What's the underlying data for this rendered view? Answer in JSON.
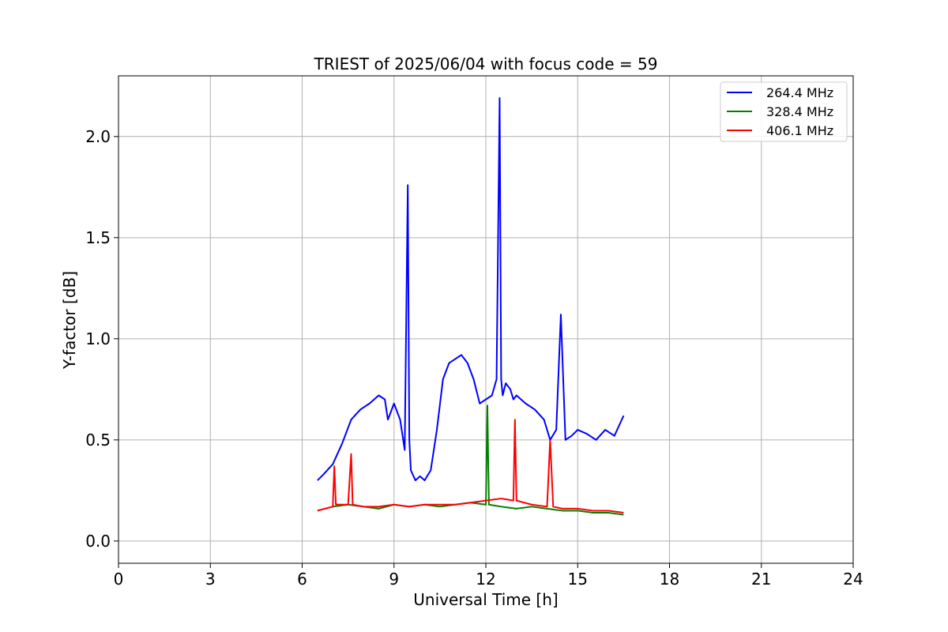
{
  "chart_data": {
    "type": "line",
    "title": "TRIEST of 2025/06/04 with focus code = 59",
    "xlabel": "Universal Time [h]",
    "ylabel": "Y-factor [dB]",
    "xlim": [
      0,
      24
    ],
    "ylim": [
      -0.11,
      2.3
    ],
    "xticks": [
      0,
      3,
      6,
      9,
      12,
      15,
      18,
      21,
      24
    ],
    "yticks": [
      0.0,
      0.5,
      1.0,
      1.5,
      2.0
    ],
    "xtick_labels": [
      "0",
      "3",
      "6",
      "9",
      "12",
      "15",
      "18",
      "21",
      "24"
    ],
    "ytick_labels": [
      "0.0",
      "0.5",
      "1.0",
      "1.5",
      "2.0"
    ],
    "grid": true,
    "legend_position": "top-right",
    "series": [
      {
        "name": "264.4 MHz",
        "color": "#0000ff",
        "x": [
          6.5,
          6.7,
          7.0,
          7.3,
          7.6,
          7.9,
          8.2,
          8.5,
          8.7,
          8.8,
          9.0,
          9.2,
          9.35,
          9.45,
          9.5,
          9.55,
          9.7,
          9.85,
          10.0,
          10.2,
          10.4,
          10.6,
          10.8,
          11.0,
          11.2,
          11.4,
          11.6,
          11.8,
          12.0,
          12.2,
          12.35,
          12.45,
          12.5,
          12.55,
          12.65,
          12.8,
          12.9,
          13.0,
          13.3,
          13.6,
          13.9,
          14.1,
          14.3,
          14.45,
          14.6,
          14.8,
          15.0,
          15.3,
          15.6,
          15.9,
          16.2,
          16.5
        ],
        "y": [
          0.3,
          0.33,
          0.38,
          0.48,
          0.6,
          0.65,
          0.68,
          0.72,
          0.7,
          0.6,
          0.68,
          0.6,
          0.45,
          1.76,
          0.5,
          0.35,
          0.3,
          0.32,
          0.3,
          0.35,
          0.55,
          0.8,
          0.88,
          0.9,
          0.92,
          0.88,
          0.8,
          0.68,
          0.7,
          0.72,
          0.8,
          2.19,
          0.8,
          0.72,
          0.78,
          0.75,
          0.7,
          0.72,
          0.68,
          0.65,
          0.6,
          0.5,
          0.55,
          1.12,
          0.5,
          0.52,
          0.55,
          0.53,
          0.5,
          0.55,
          0.52,
          0.62
        ]
      },
      {
        "name": "328.4 MHz",
        "color": "#008000",
        "x": [
          6.5,
          7.0,
          7.5,
          8.0,
          8.5,
          9.0,
          9.5,
          10.0,
          10.5,
          11.0,
          11.5,
          12.0,
          12.05,
          12.1,
          12.5,
          13.0,
          13.5,
          14.0,
          14.5,
          15.0,
          15.5,
          16.0,
          16.5
        ],
        "y": [
          0.15,
          0.17,
          0.18,
          0.17,
          0.16,
          0.18,
          0.17,
          0.18,
          0.17,
          0.18,
          0.19,
          0.18,
          0.67,
          0.18,
          0.17,
          0.16,
          0.17,
          0.16,
          0.15,
          0.15,
          0.14,
          0.14,
          0.13
        ]
      },
      {
        "name": "406.1 MHz",
        "color": "#ff0000",
        "x": [
          6.5,
          7.0,
          7.05,
          7.1,
          7.5,
          7.6,
          7.65,
          8.0,
          8.5,
          9.0,
          9.5,
          10.0,
          10.5,
          11.0,
          11.5,
          12.0,
          12.5,
          12.9,
          12.95,
          13.0,
          13.5,
          14.0,
          14.1,
          14.2,
          14.5,
          15.0,
          15.5,
          16.0,
          16.5
        ],
        "y": [
          0.15,
          0.17,
          0.37,
          0.18,
          0.18,
          0.43,
          0.18,
          0.17,
          0.17,
          0.18,
          0.17,
          0.18,
          0.18,
          0.18,
          0.19,
          0.2,
          0.21,
          0.2,
          0.6,
          0.2,
          0.18,
          0.17,
          0.5,
          0.17,
          0.16,
          0.16,
          0.15,
          0.15,
          0.14
        ]
      }
    ]
  }
}
